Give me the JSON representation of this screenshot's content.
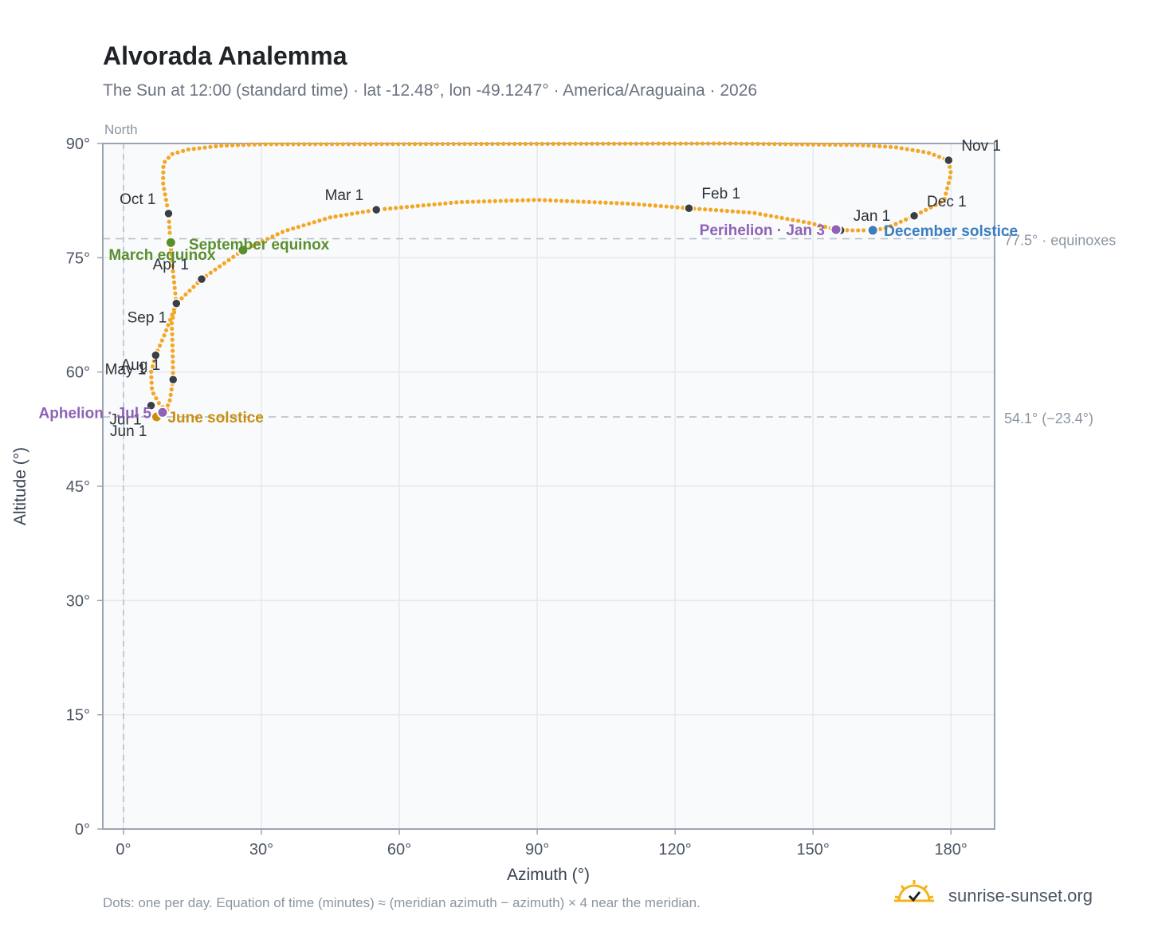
{
  "title": "Alvorada Analemma",
  "subtitle": "The Sun at 12:00 (standard time) · lat -12.48°, lon -49.1247° · America/Araguaina · 2026",
  "footnote": "Dots: one per day. Equation of time (minutes) ≈ (meridian azimuth − azimuth) × 4 near the meridian.",
  "brand": {
    "name": "sunrise-sunset.org",
    "icon": "sun-icon"
  },
  "colors": {
    "path": "#f5a623",
    "month_marker": "#3a3f46",
    "equinox": "#5a8f2e",
    "june_solstice": "#c9900e",
    "december_solstice": "#3b7dbf",
    "apsis": "#8e62b5",
    "plot_bg": "#f8fafc",
    "grid": "#e5e9ee",
    "axis": "#9aa5b1"
  },
  "chart_data": {
    "type": "scatter",
    "xlabel": "Azimuth (°)",
    "ylabel": "Altitude (°)",
    "xlim": [
      -4.5,
      189.5
    ],
    "ylim": [
      0,
      90
    ],
    "x_ticks": [
      0,
      30,
      60,
      90,
      120,
      150,
      180
    ],
    "x_tick_labels": [
      "0°",
      "30°",
      "60°",
      "90°",
      "120°",
      "150°",
      "180°"
    ],
    "y_ticks": [
      0,
      15,
      30,
      45,
      60,
      75,
      90
    ],
    "y_tick_labels": [
      "0°",
      "15°",
      "30°",
      "45°",
      "60°",
      "75°",
      "90°"
    ],
    "grid": true,
    "north_line": {
      "x": 0,
      "label": "North"
    },
    "reference_lines": [
      {
        "y": 77.5,
        "label": "77.5° · equinoxes"
      },
      {
        "y": 54.1,
        "label": "54.1° (−23.4°)"
      }
    ],
    "path_knots": [
      [
        9.5,
        55.0
      ],
      [
        8.0,
        55.6
      ],
      [
        6.2,
        57.5
      ],
      [
        6.0,
        60.0
      ],
      [
        7.0,
        62.2
      ],
      [
        9.0,
        65.0
      ],
      [
        11.5,
        69.0
      ],
      [
        10.8,
        73.0
      ],
      [
        10.2,
        77.0
      ],
      [
        9.8,
        80.8
      ],
      [
        8.6,
        84.8
      ],
      [
        8.7,
        87.4
      ],
      [
        10.5,
        88.6
      ],
      [
        14.0,
        89.2
      ],
      [
        21.0,
        89.7
      ],
      [
        30.0,
        89.9
      ],
      [
        132.0,
        90.0
      ],
      [
        160.0,
        89.8
      ],
      [
        168.0,
        89.5
      ],
      [
        175.0,
        88.8
      ],
      [
        179.5,
        87.8
      ],
      [
        180.0,
        86.0
      ],
      [
        178.5,
        82.5
      ],
      [
        172.0,
        80.5
      ],
      [
        166.0,
        78.9
      ],
      [
        163.0,
        78.6
      ],
      [
        158.0,
        78.6
      ],
      [
        155.0,
        78.7
      ],
      [
        149.0,
        79.6
      ],
      [
        137.0,
        80.9
      ],
      [
        123.0,
        81.5
      ],
      [
        110.0,
        82.1
      ],
      [
        90.0,
        82.6
      ],
      [
        73.0,
        82.3
      ],
      [
        55.0,
        81.3
      ],
      [
        45.0,
        80.3
      ],
      [
        35.0,
        78.5
      ],
      [
        26.0,
        76.0
      ],
      [
        17.0,
        72.2
      ],
      [
        11.5,
        69.0
      ],
      [
        10.5,
        66.5
      ],
      [
        10.7,
        62.5
      ],
      [
        10.8,
        59.0
      ],
      [
        10.0,
        56.0
      ],
      [
        8.8,
        54.7
      ],
      [
        7.2,
        54.1
      ]
    ],
    "month_markers": [
      {
        "label": "Jan 1",
        "x": 156.0,
        "y": 78.6,
        "label_pos": "upper-right"
      },
      {
        "label": "Feb 1",
        "x": 123.0,
        "y": 81.5,
        "label_pos": "upper-right"
      },
      {
        "label": "Mar 1",
        "x": 55.0,
        "y": 81.3,
        "label_pos": "upper-left"
      },
      {
        "label": "Apr 1",
        "x": 17.0,
        "y": 72.2,
        "label_pos": "upper-left"
      },
      {
        "label": "May 1",
        "x": 7.0,
        "y": 62.2,
        "label_pos": "lower-left"
      },
      {
        "label": "Jun 1",
        "x": 7.2,
        "y": 54.1,
        "label_pos": "lower-left"
      },
      {
        "label": "Jul 1",
        "x": 6.0,
        "y": 55.6,
        "label_pos": "lower-left"
      },
      {
        "label": "Aug 1",
        "x": 10.8,
        "y": 59.0,
        "label_pos": "upper-left"
      },
      {
        "label": "Sep 1",
        "x": 11.5,
        "y": 69.0,
        "label_pos": "lower-left"
      },
      {
        "label": "Oct 1",
        "x": 9.8,
        "y": 80.8,
        "label_pos": "upper-left"
      },
      {
        "label": "Nov 1",
        "x": 179.5,
        "y": 87.8,
        "label_pos": "upper-right"
      },
      {
        "label": "Dec 1",
        "x": 172.0,
        "y": 80.5,
        "label_pos": "upper-right"
      }
    ],
    "events": [
      {
        "label": "March equinox",
        "x": 10.3,
        "y": 77.0,
        "color_key": "equinox",
        "label_pos": "below-left"
      },
      {
        "label": "September equinox",
        "x": 26.0,
        "y": 76.0,
        "color_key": "equinox",
        "label_pos": "above-left-start"
      },
      {
        "label": "June solstice",
        "x": 7.2,
        "y": 54.1,
        "color_key": "june_solstice",
        "label_pos": "right"
      },
      {
        "label": "December solstice",
        "x": 163.0,
        "y": 78.6,
        "color_key": "december_solstice",
        "label_pos": "right"
      },
      {
        "label": "Aphelion · Jul 5",
        "x": 8.5,
        "y": 54.7,
        "color_key": "apsis",
        "label_pos": "left"
      },
      {
        "label": "Perihelion · Jan 3",
        "x": 155.0,
        "y": 78.7,
        "color_key": "apsis",
        "label_pos": "left"
      }
    ]
  }
}
